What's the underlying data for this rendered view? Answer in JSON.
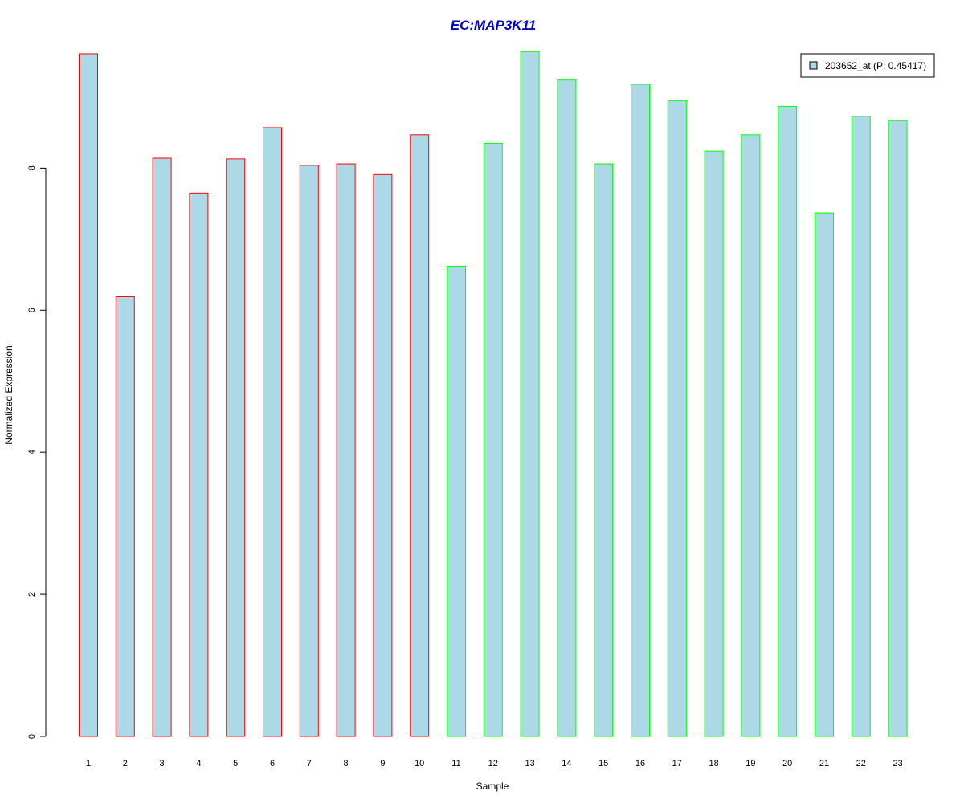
{
  "chart_data": {
    "type": "bar",
    "title": "EC:MAP3K11",
    "xlabel": "Sample",
    "ylabel": "Normalized Expression",
    "categories": [
      "1",
      "2",
      "3",
      "4",
      "5",
      "6",
      "7",
      "8",
      "9",
      "10",
      "11",
      "12",
      "13",
      "14",
      "15",
      "16",
      "17",
      "18",
      "19",
      "20",
      "21",
      "22",
      "23"
    ],
    "series": [
      {
        "name": "203652_at (P: 0.45417)",
        "values": [
          9.61,
          6.19,
          8.14,
          7.65,
          8.13,
          8.57,
          8.04,
          8.06,
          7.91,
          8.47,
          6.62,
          8.35,
          9.64,
          9.24,
          8.06,
          9.18,
          8.95,
          8.24,
          8.47,
          8.87,
          7.37,
          8.73,
          8.67
        ],
        "fill": "#ADD8E6",
        "legend_fill": "#ADD8E6"
      }
    ],
    "group_border_colors": [
      "#FF0000",
      "#FF0000",
      "#FF0000",
      "#FF0000",
      "#FF0000",
      "#FF0000",
      "#FF0000",
      "#FF0000",
      "#FF0000",
      "#FF0000",
      "#00FF00",
      "#00FF00",
      "#00FF00",
      "#00FF00",
      "#00FF00",
      "#00FF00",
      "#00FF00",
      "#00FF00",
      "#00FF00",
      "#00FF00",
      "#00FF00",
      "#00FF00",
      "#00FF00"
    ],
    "ylim": [
      0,
      9.7
    ],
    "yticks": [
      0,
      2,
      4,
      6,
      8
    ],
    "grid": false,
    "legend_position": "top-right",
    "title_color": "#0000CC"
  }
}
